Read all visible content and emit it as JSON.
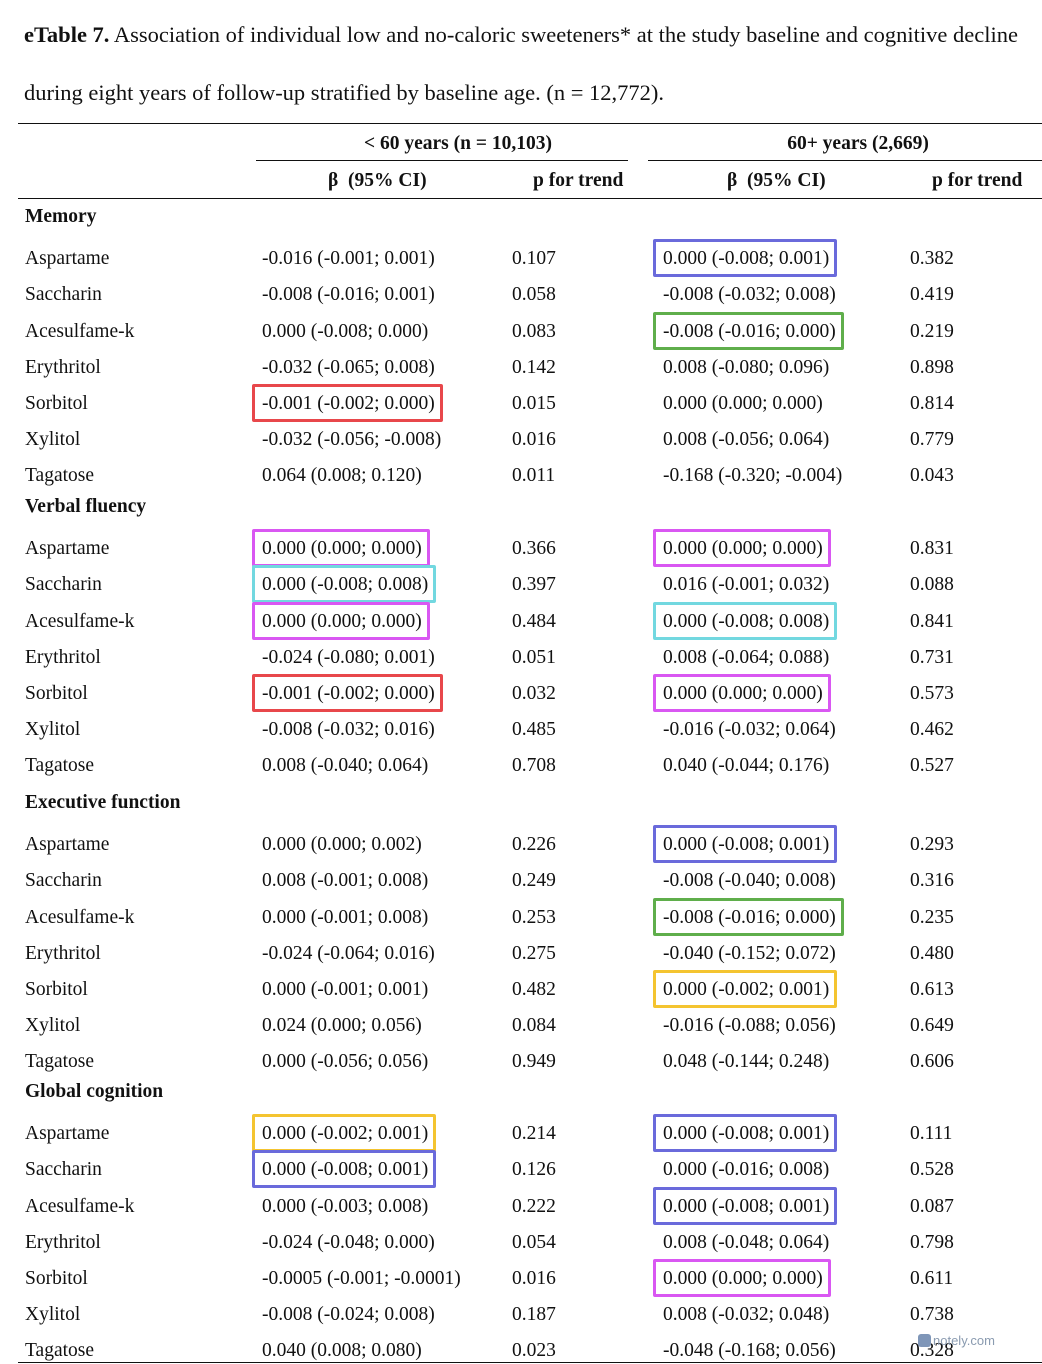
{
  "title": {
    "label": "eTable 7.",
    "text": " Association of individual low and no-caloric sweeteners* at the study baseline and cognitive decline during eight years of follow-up stratified by baseline age. (n = 12,772)."
  },
  "groups": [
    "< 60 years (n = 10,103)",
    "60+ years (2,669)"
  ],
  "columns": [
    "β  (95% CI)",
    "p for trend",
    "β  (95% CI)",
    "p for trend"
  ],
  "highlight_colors": {
    "red": "#e8474b",
    "blue": "#6a6adb",
    "green": "#5fae4b",
    "magenta": "#d957f2",
    "cyan": "#72d8e0",
    "yellow": "#f4c430"
  },
  "sections": [
    {
      "name": "Memory",
      "rows": [
        {
          "label": "Aspartame",
          "b1": "-0.016 (-0.001; 0.001)",
          "p1": "0.107",
          "b2": "0.000 (-0.008; 0.001)",
          "p2": "0.382",
          "h2": "blue"
        },
        {
          "label": "Saccharin",
          "b1": "-0.008 (-0.016; 0.001)",
          "p1": "0.058",
          "b2": "-0.008 (-0.032; 0.008)",
          "p2": "0.419"
        },
        {
          "label": "Acesulfame-k",
          "b1": "0.000 (-0.008; 0.000)",
          "p1": "0.083",
          "b2": "-0.008 (-0.016; 0.000)",
          "p2": "0.219",
          "h2": "green"
        },
        {
          "label": "Erythritol",
          "b1": "-0.032 (-0.065; 0.008)",
          "p1": "0.142",
          "b2": "0.008 (-0.080; 0.096)",
          "p2": "0.898"
        },
        {
          "label": "Sorbitol",
          "b1": "-0.001 (-0.002; 0.000)",
          "p1": "0.015",
          "b2": "0.000 (0.000; 0.000)",
          "p2": "0.814",
          "h1": "red"
        },
        {
          "label": "Xylitol",
          "b1": "-0.032 (-0.056; -0.008)",
          "p1": "0.016",
          "b2": "0.008 (-0.056; 0.064)",
          "p2": "0.779"
        },
        {
          "label": "Tagatose",
          "b1": "0.064 (0.008; 0.120)",
          "p1": "0.011",
          "b2": "-0.168 (-0.320; -0.004)",
          "p2": "0.043"
        }
      ]
    },
    {
      "name": "Verbal fluency",
      "rows": [
        {
          "label": "Aspartame",
          "b1": "0.000 (0.000; 0.000)",
          "p1": "0.366",
          "b2": "0.000 (0.000; 0.000)",
          "p2": "0.831",
          "h1": "magenta",
          "h2": "magenta"
        },
        {
          "label": "Saccharin",
          "b1": "0.000 (-0.008; 0.008)",
          "p1": "0.397",
          "b2": "0.016 (-0.001; 0.032)",
          "p2": "0.088",
          "h1": "cyan"
        },
        {
          "label": "Acesulfame-k",
          "b1": "0.000 (0.000; 0.000)",
          "p1": "0.484",
          "b2": "0.000 (-0.008; 0.008)",
          "p2": "0.841",
          "h1": "magenta",
          "h2": "cyan"
        },
        {
          "label": "Erythritol",
          "b1": "-0.024 (-0.080; 0.001)",
          "p1": "0.051",
          "b2": "0.008 (-0.064; 0.088)",
          "p2": "0.731"
        },
        {
          "label": "Sorbitol",
          "b1": "-0.001 (-0.002; 0.000)",
          "p1": "0.032",
          "b2": "0.000 (0.000; 0.000)",
          "p2": "0.573",
          "h1": "red",
          "h2": "magenta"
        },
        {
          "label": "Xylitol",
          "b1": "-0.008 (-0.032; 0.016)",
          "p1": "0.485",
          "b2": "-0.016 (-0.032; 0.064)",
          "p2": "0.462"
        },
        {
          "label": "Tagatose",
          "b1": "0.008 (-0.040; 0.064)",
          "p1": "0.708",
          "b2": "0.040 (-0.044; 0.176)",
          "p2": "0.527"
        }
      ]
    },
    {
      "name": "Executive function",
      "rows": [
        {
          "label": "Aspartame",
          "b1": "0.000 (0.000; 0.002)",
          "p1": "0.226",
          "b2": "0.000 (-0.008; 0.001)",
          "p2": "0.293",
          "h2": "blue"
        },
        {
          "label": "Saccharin",
          "b1": "0.008 (-0.001; 0.008)",
          "p1": "0.249",
          "b2": "-0.008 (-0.040; 0.008)",
          "p2": "0.316"
        },
        {
          "label": "Acesulfame-k",
          "b1": "0.000 (-0.001; 0.008)",
          "p1": "0.253",
          "b2": "-0.008 (-0.016; 0.000)",
          "p2": "0.235",
          "h2": "green"
        },
        {
          "label": "Erythritol",
          "b1": "-0.024 (-0.064; 0.016)",
          "p1": "0.275",
          "b2": "-0.040 (-0.152; 0.072)",
          "p2": "0.480"
        },
        {
          "label": "Sorbitol",
          "b1": "0.000 (-0.001; 0.001)",
          "p1": "0.482",
          "b2": "0.000 (-0.002; 0.001)",
          "p2": "0.613",
          "h2": "yellow"
        },
        {
          "label": "Xylitol",
          "b1": "0.024 (0.000; 0.056)",
          "p1": "0.084",
          "b2": "-0.016 (-0.088; 0.056)",
          "p2": "0.649"
        },
        {
          "label": "Tagatose",
          "b1": "0.000 (-0.056; 0.056)",
          "p1": "0.949",
          "b2": "0.048 (-0.144; 0.248)",
          "p2": "0.606"
        }
      ]
    },
    {
      "name": "Global cognition",
      "rows": [
        {
          "label": "Aspartame",
          "b1": "0.000 (-0.002; 0.001)",
          "p1": "0.214",
          "b2": "0.000 (-0.008; 0.001)",
          "p2": "0.111",
          "h1": "yellow",
          "h2": "blue"
        },
        {
          "label": "Saccharin",
          "b1": "0.000 (-0.008; 0.001)",
          "p1": "0.126",
          "b2": "0.000 (-0.016; 0.008)",
          "p2": "0.528",
          "h1": "blue"
        },
        {
          "label": "Acesulfame-k",
          "b1": "0.000 (-0.003; 0.008)",
          "p1": "0.222",
          "b2": "0.000 (-0.008; 0.001)",
          "p2": "0.087",
          "h2": "blue"
        },
        {
          "label": "Erythritol",
          "b1": "-0.024 (-0.048; 0.000)",
          "p1": "0.054",
          "b2": "0.008 (-0.048; 0.064)",
          "p2": "0.798"
        },
        {
          "label": "Sorbitol",
          "b1": "-0.0005 (-0.001; -0.0001)",
          "p1": "0.016",
          "b2": "0.000 (0.000; 0.000)",
          "p2": "0.611",
          "h2": "magenta"
        },
        {
          "label": "Xylitol",
          "b1": "-0.008 (-0.024; 0.008)",
          "p1": "0.187",
          "b2": "0.008 (-0.032; 0.048)",
          "p2": "0.738"
        },
        {
          "label": "Tagatose",
          "b1": "0.040 (0.008; 0.080)",
          "p1": "0.023",
          "b2": "-0.048 (-0.168; 0.056)",
          "p2": "0.328"
        }
      ]
    }
  ],
  "watermark": "notely.com"
}
